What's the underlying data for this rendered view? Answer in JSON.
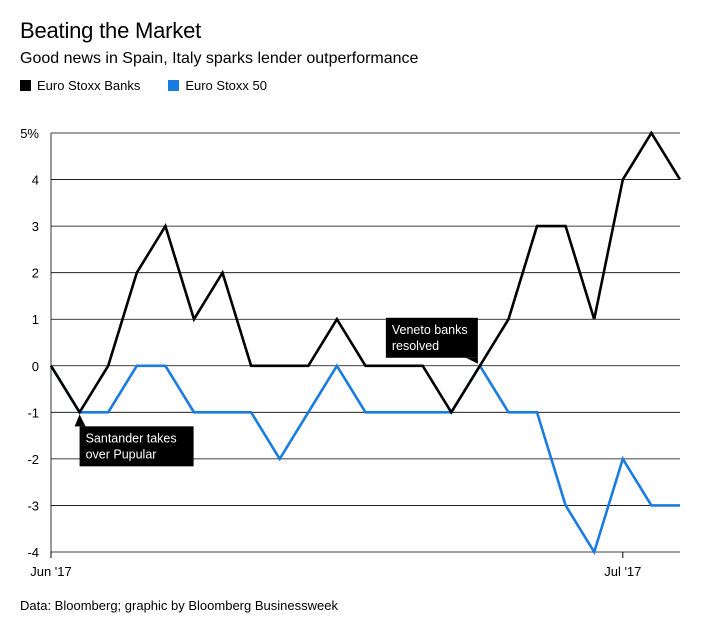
{
  "header": {
    "title": "Beating the Market",
    "subtitle": "Good news in Spain, Italy sparks lender outperformance"
  },
  "legend": [
    {
      "label": "Euro Stoxx Banks",
      "color": "#000000"
    },
    {
      "label": "Euro Stoxx 50",
      "color": "#1a7be0"
    }
  ],
  "source": "Data: Bloomberg; graphic by Bloomberg Businessweek",
  "chart_data": {
    "type": "line",
    "ylim": [
      -4,
      5
    ],
    "yticks": [
      {
        "value": 5,
        "label": "5%"
      },
      {
        "value": 4,
        "label": "4"
      },
      {
        "value": 3,
        "label": "3"
      },
      {
        "value": 2,
        "label": "2"
      },
      {
        "value": 1,
        "label": "1"
      },
      {
        "value": 0,
        "label": "0"
      },
      {
        "value": -1,
        "label": "-1"
      },
      {
        "value": -2,
        "label": "-2"
      },
      {
        "value": -3,
        "label": "-3"
      },
      {
        "value": -4,
        "label": "-4"
      }
    ],
    "xticks": [
      {
        "index": 0,
        "label": "Jun '17"
      },
      {
        "index": 20,
        "label": "Jul '17"
      }
    ],
    "grid": true,
    "legend_position": "top-left",
    "series": [
      {
        "name": "Euro Stoxx Banks",
        "color": "#000000",
        "values": [
          0,
          -1,
          0,
          2,
          3,
          1,
          2,
          0,
          0,
          0,
          1,
          0,
          0,
          0,
          -1,
          0,
          1,
          3,
          3,
          1,
          4,
          5,
          4
        ]
      },
      {
        "name": "Euro Stoxx 50",
        "color": "#1a7be0",
        "values": [
          0,
          -1,
          -1,
          0,
          0,
          -1,
          -1,
          -1,
          -2,
          -1,
          0,
          -1,
          -1,
          -1,
          -1,
          0,
          -1,
          -1,
          -3,
          -4,
          -2,
          -3,
          -3
        ]
      }
    ],
    "annotations": [
      {
        "index": 1,
        "value": -1,
        "lines": [
          "Santander takes",
          "over Pupular"
        ],
        "placement": "below"
      },
      {
        "index": 15,
        "value": 0,
        "lines": [
          "Veneto banks",
          "resolved"
        ],
        "placement": "above-left"
      }
    ]
  }
}
